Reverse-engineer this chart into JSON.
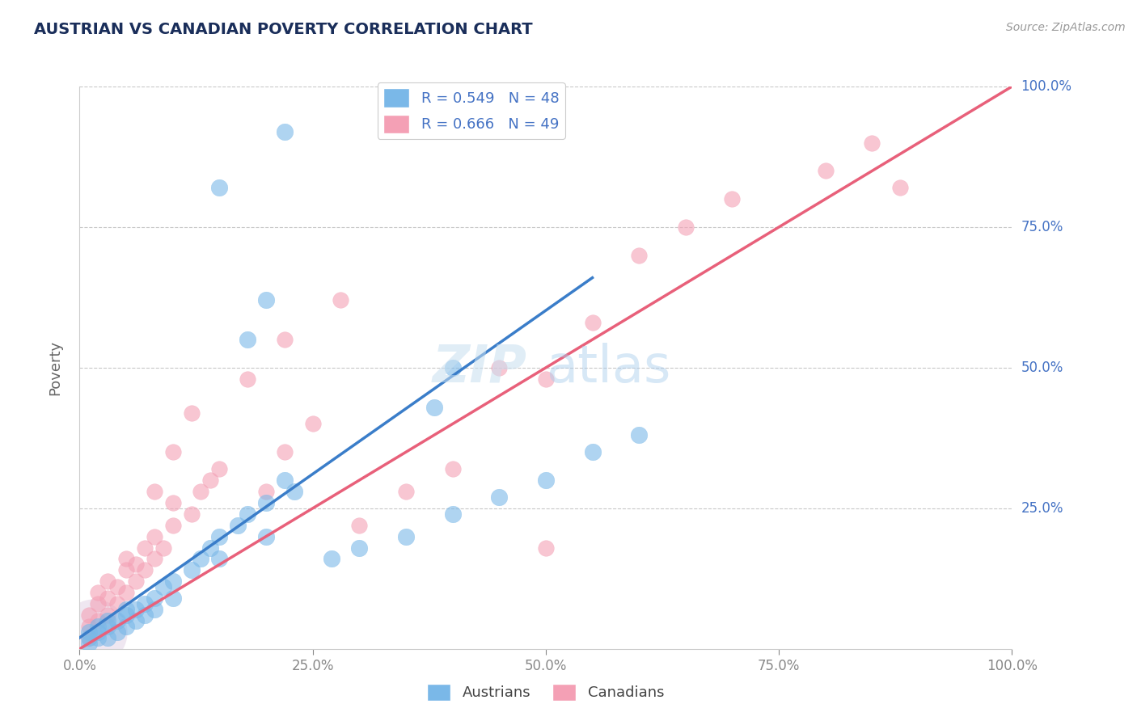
{
  "title": "AUSTRIAN VS CANADIAN POVERTY CORRELATION CHART",
  "source": "Source: ZipAtlas.com",
  "ylabel": "Poverty",
  "watermark_zip": "ZIP",
  "watermark_atlas": "atlas",
  "xlim": [
    0,
    100
  ],
  "ylim": [
    0,
    100
  ],
  "xtick_positions": [
    0,
    25,
    50,
    75,
    100
  ],
  "ytick_positions": [
    0,
    25,
    50,
    75,
    100
  ],
  "xticklabels": [
    "0.0%",
    "25.0%",
    "50.0%",
    "75.0%",
    "100.0%"
  ],
  "yticklabels_right": [
    "",
    "25.0%",
    "50.0%",
    "75.0%",
    "100.0%"
  ],
  "austrian_R": 0.549,
  "austrian_N": 48,
  "canadian_R": 0.666,
  "canadian_N": 49,
  "austrian_color": "#7ab8e8",
  "canadian_color": "#f4a0b5",
  "austrian_line_color": "#3a7dc9",
  "canadian_line_color": "#e8607a",
  "ref_line_color": "#a0c0e0",
  "grid_color": "#c8c8c8",
  "background_color": "#ffffff",
  "title_color": "#1a2e5a",
  "tick_label_color": "#4472c4",
  "austrians_label": "Austrians",
  "canadians_label": "Canadians",
  "aus_line_x0": 0,
  "aus_line_y0": 2,
  "aus_line_x1": 55,
  "aus_line_y1": 66,
  "can_line_x0": 0,
  "can_line_y0": 0,
  "can_line_x1": 100,
  "can_line_y1": 100,
  "ref_line_x0": 50,
  "ref_line_y0": 50,
  "ref_line_x1": 100,
  "ref_line_y1": 100,
  "austrian_points": [
    [
      1,
      2
    ],
    [
      1,
      3
    ],
    [
      1,
      1
    ],
    [
      2,
      3
    ],
    [
      2,
      2
    ],
    [
      2,
      4
    ],
    [
      3,
      4
    ],
    [
      3,
      2
    ],
    [
      3,
      5
    ],
    [
      4,
      5
    ],
    [
      4,
      3
    ],
    [
      5,
      6
    ],
    [
      5,
      4
    ],
    [
      5,
      7
    ],
    [
      6,
      7
    ],
    [
      6,
      5
    ],
    [
      7,
      8
    ],
    [
      7,
      6
    ],
    [
      8,
      9
    ],
    [
      8,
      7
    ],
    [
      9,
      11
    ],
    [
      10,
      12
    ],
    [
      10,
      9
    ],
    [
      12,
      14
    ],
    [
      13,
      16
    ],
    [
      14,
      18
    ],
    [
      15,
      20
    ],
    [
      15,
      16
    ],
    [
      17,
      22
    ],
    [
      18,
      24
    ],
    [
      20,
      26
    ],
    [
      20,
      20
    ],
    [
      22,
      30
    ],
    [
      23,
      28
    ],
    [
      27,
      16
    ],
    [
      30,
      18
    ],
    [
      35,
      20
    ],
    [
      40,
      24
    ],
    [
      45,
      27
    ],
    [
      50,
      30
    ],
    [
      55,
      35
    ],
    [
      60,
      38
    ],
    [
      18,
      55
    ],
    [
      20,
      62
    ],
    [
      38,
      43
    ],
    [
      40,
      50
    ],
    [
      15,
      82
    ],
    [
      22,
      92
    ]
  ],
  "canadian_points": [
    [
      1,
      2
    ],
    [
      1,
      4
    ],
    [
      1,
      6
    ],
    [
      2,
      5
    ],
    [
      2,
      8
    ],
    [
      2,
      10
    ],
    [
      3,
      6
    ],
    [
      3,
      9
    ],
    [
      3,
      12
    ],
    [
      4,
      8
    ],
    [
      4,
      11
    ],
    [
      5,
      10
    ],
    [
      5,
      14
    ],
    [
      5,
      16
    ],
    [
      6,
      12
    ],
    [
      6,
      15
    ],
    [
      7,
      14
    ],
    [
      7,
      18
    ],
    [
      8,
      16
    ],
    [
      8,
      20
    ],
    [
      9,
      18
    ],
    [
      10,
      22
    ],
    [
      10,
      26
    ],
    [
      12,
      24
    ],
    [
      13,
      28
    ],
    [
      14,
      30
    ],
    [
      15,
      32
    ],
    [
      20,
      28
    ],
    [
      22,
      35
    ],
    [
      25,
      40
    ],
    [
      30,
      22
    ],
    [
      35,
      28
    ],
    [
      40,
      32
    ],
    [
      50,
      18
    ],
    [
      12,
      42
    ],
    [
      18,
      48
    ],
    [
      22,
      55
    ],
    [
      28,
      62
    ],
    [
      60,
      70
    ],
    [
      65,
      75
    ],
    [
      70,
      80
    ],
    [
      80,
      85
    ],
    [
      85,
      90
    ],
    [
      88,
      82
    ],
    [
      45,
      50
    ],
    [
      55,
      58
    ],
    [
      8,
      28
    ],
    [
      10,
      35
    ],
    [
      50,
      48
    ]
  ],
  "large_bubble_x": 1.5,
  "large_bubble_y": 3,
  "large_bubble_size": 3500,
  "large_bubble_color": "#c0a0c8"
}
